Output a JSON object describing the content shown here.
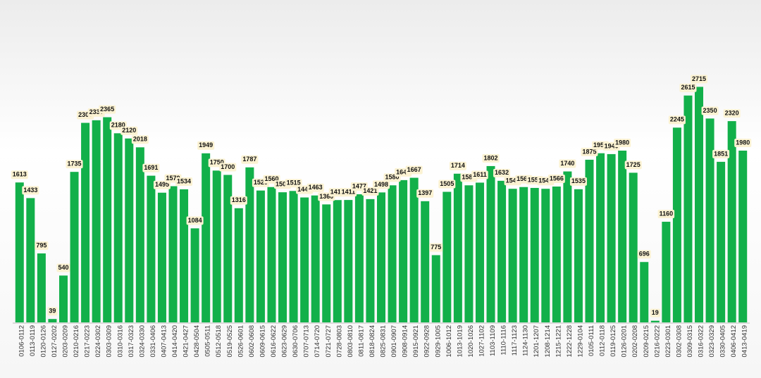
{
  "chart_data": {
    "type": "bar",
    "categories": [
      "0106-0112",
      "0113-0119",
      "0120-0126",
      "0127-0202",
      "0203-0209",
      "0210-0216",
      "0217-0223",
      "0224-0302",
      "0303-0309",
      "0310-0316",
      "0317-0323",
      "0324-0330",
      "0331-0406",
      "0407-0413",
      "0414-0420",
      "0421-0427",
      "0428-0504",
      "0505-0511",
      "0512-0518",
      "0519-0525",
      "0526-0601",
      "0602-0608",
      "0609-0615",
      "0616-0622",
      "0623-0629",
      "0630-0706",
      "0707-0713",
      "0714-0720",
      "0721-0727",
      "0728-0803",
      "0803-0810",
      "0811-0817",
      "0818-0824",
      "0825-0831",
      "0901-0907",
      "0908-0914",
      "0915-0921",
      "0922-0928",
      "0929-1005",
      "1006-1012",
      "1013-1019",
      "1020-1026",
      "1027-1102",
      "1103-1109",
      "1110-1116",
      "1117-1123",
      "1124-1130",
      "1201-1207",
      "1208-1214",
      "1215-1221",
      "1222-1228",
      "1229-0104",
      "0105-0111",
      "0112-0118",
      "0119-0125",
      "0126-0201",
      "0202-0208",
      "0209-0215",
      "0216-0222",
      "0223-0301",
      "0302-0308",
      "0309-0315",
      "0316-0322",
      "0323-0329",
      "0330-0405",
      "0406-0412",
      "0413-0419"
    ],
    "values": [
      1613,
      1433,
      795,
      39,
      540,
      1735,
      2300,
      2330,
      2365,
      2180,
      2120,
      2018,
      1691,
      1495,
      1570,
      1534,
      1084,
      1949,
      1750,
      1700,
      1316,
      1787,
      1520,
      1560,
      1500,
      1515,
      1440,
      1463,
      1360,
      1410,
      1411,
      1477,
      1421,
      1498,
      1580,
      1640,
      1667,
      1397,
      775,
      1505,
      1714,
      1580,
      1611,
      1802,
      1632,
      1540,
      1560,
      1550,
      1540,
      1566,
      1740,
      1535,
      1875,
      1950,
      1940,
      1980,
      1725,
      696,
      19,
      1160,
      2245,
      2615,
      2715,
      2350,
      1851,
      2320,
      1980
    ],
    "color": "#12b04a",
    "ylim": [
      0,
      3700
    ]
  }
}
